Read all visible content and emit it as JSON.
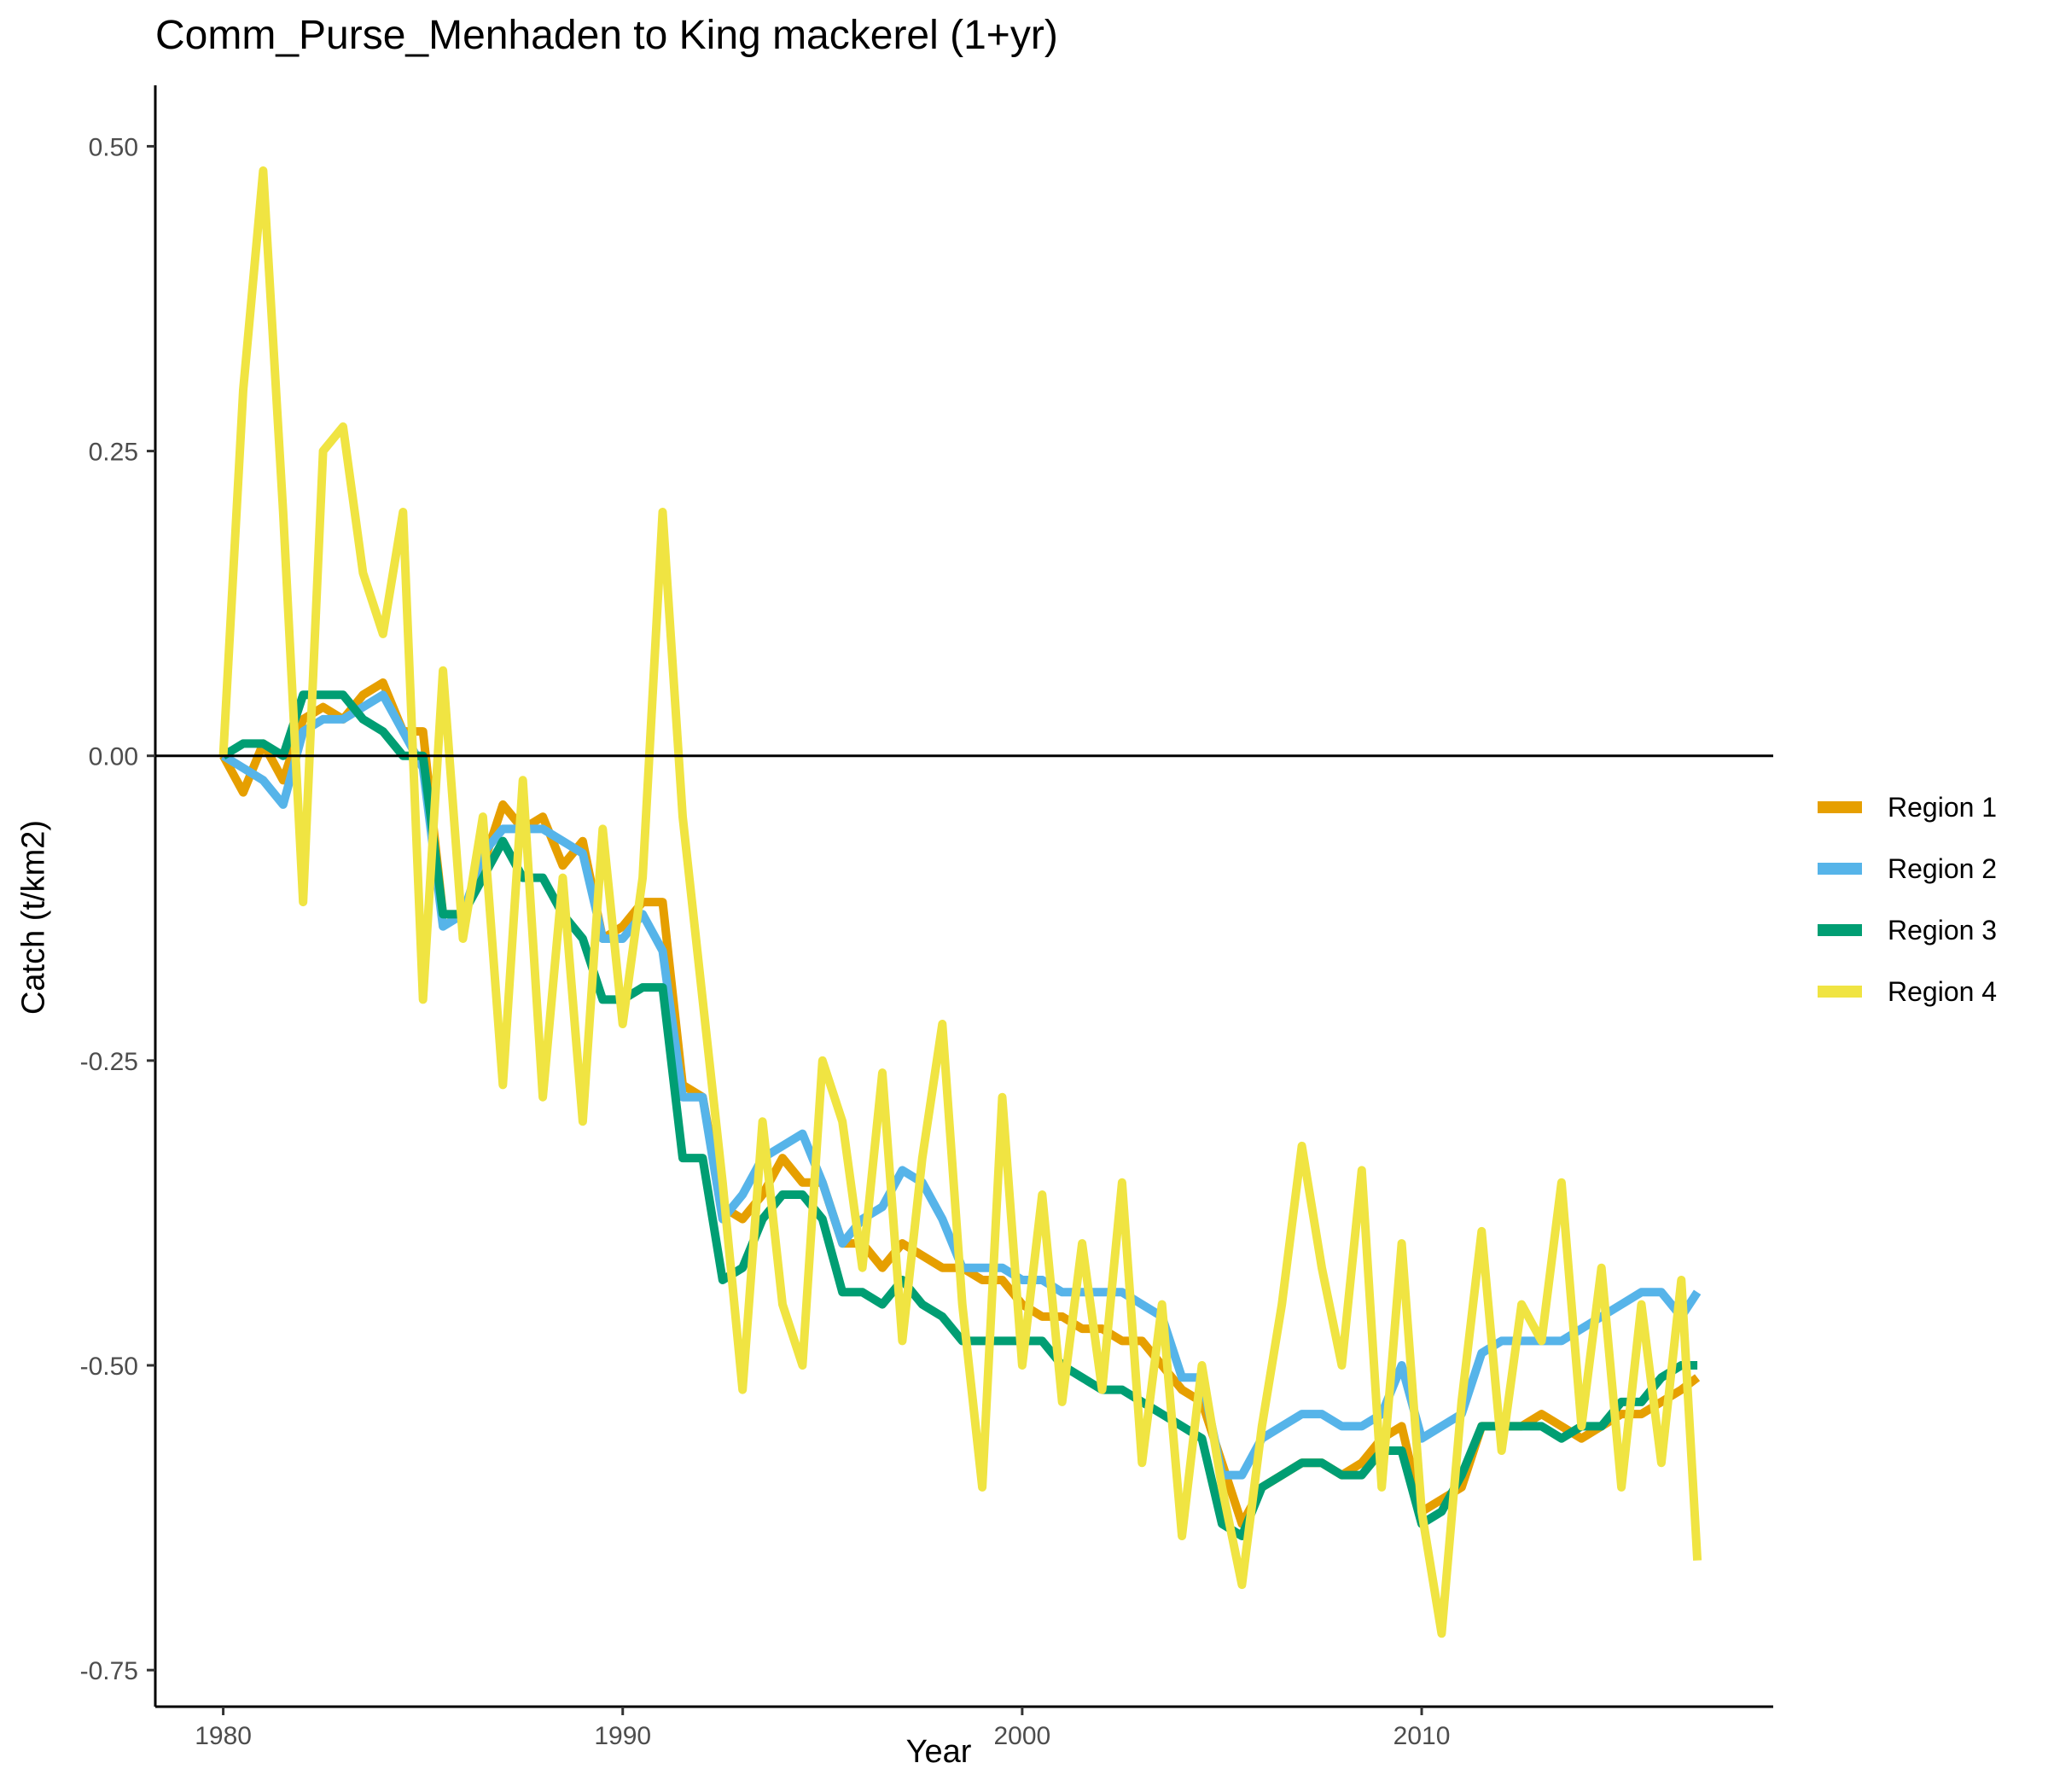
{
  "chart_data": {
    "type": "line",
    "title": "Comm_Purse_Menhaden to King mackerel (1+yr)",
    "xlabel": "Year",
    "ylabel": "Catch (t/km2)",
    "xlim": [
      1978.3,
      2018.8
    ],
    "ylim": [
      -0.78,
      0.55
    ],
    "x_ticks": [
      {
        "value": 1980,
        "label": "1980"
      },
      {
        "value": 1990,
        "label": "1990"
      },
      {
        "value": 2000,
        "label": "2000"
      },
      {
        "value": 2010,
        "label": "2010"
      }
    ],
    "y_ticks": [
      {
        "value": 0.5,
        "label": "0.50"
      },
      {
        "value": 0.25,
        "label": "0.25"
      },
      {
        "value": 0.0,
        "label": "0.00"
      },
      {
        "value": -0.25,
        "label": "-0.25"
      },
      {
        "value": -0.5,
        "label": "-0.50"
      },
      {
        "value": -0.75,
        "label": "-0.75"
      }
    ],
    "reference_line_y": 0,
    "grid": false,
    "legend_position": "right",
    "x": [
      1980.0,
      1980.5,
      1981.0,
      1981.5,
      1982.0,
      1982.5,
      1983.0,
      1983.5,
      1984.0,
      1984.5,
      1985.0,
      1985.5,
      1986.0,
      1986.5,
      1987.0,
      1987.5,
      1988.0,
      1988.5,
      1989.0,
      1989.5,
      1990.0,
      1990.5,
      1991.0,
      1991.5,
      1992.0,
      1992.5,
      1993.0,
      1993.5,
      1994.0,
      1994.5,
      1995.0,
      1995.5,
      1996.0,
      1996.5,
      1997.0,
      1997.5,
      1998.0,
      1998.5,
      1999.0,
      1999.5,
      2000.0,
      2000.5,
      2001.0,
      2001.5,
      2002.0,
      2002.5,
      2003.0,
      2003.5,
      2004.0,
      2004.5,
      2005.0,
      2005.5,
      2006.0,
      2006.5,
      2007.0,
      2007.5,
      2008.0,
      2008.5,
      2009.0,
      2009.5,
      2010.0,
      2010.5,
      2011.0,
      2011.5,
      2012.0,
      2012.5,
      2013.0,
      2013.5,
      2014.0,
      2014.5,
      2015.0,
      2015.5,
      2016.0,
      2016.5,
      2016.9
    ],
    "series": [
      {
        "name": "Region 1",
        "color": "#E69F00",
        "values": [
          0.0,
          -0.03,
          0.01,
          -0.02,
          0.03,
          0.04,
          0.03,
          0.05,
          0.06,
          0.02,
          0.02,
          -0.13,
          -0.13,
          -0.09,
          -0.04,
          -0.06,
          -0.05,
          -0.09,
          -0.07,
          -0.15,
          -0.14,
          -0.12,
          -0.12,
          -0.27,
          -0.28,
          -0.37,
          -0.38,
          -0.36,
          -0.33,
          -0.35,
          -0.35,
          -0.4,
          -0.4,
          -0.42,
          -0.4,
          -0.41,
          -0.42,
          -0.42,
          -0.43,
          -0.43,
          -0.45,
          -0.46,
          -0.46,
          -0.47,
          -0.47,
          -0.48,
          -0.48,
          -0.5,
          -0.52,
          -0.53,
          -0.58,
          -0.63,
          -0.6,
          -0.59,
          -0.58,
          -0.58,
          -0.59,
          -0.58,
          -0.56,
          -0.55,
          -0.62,
          -0.61,
          -0.6,
          -0.55,
          -0.55,
          -0.55,
          -0.54,
          -0.55,
          -0.56,
          -0.55,
          -0.54,
          -0.54,
          -0.53,
          -0.52,
          -0.51
        ]
      },
      {
        "name": "Region 2",
        "color": "#56B4E9",
        "values": [
          0.0,
          -0.01,
          -0.02,
          -0.04,
          0.02,
          0.03,
          0.03,
          0.04,
          0.05,
          0.02,
          -0.01,
          -0.14,
          -0.13,
          -0.08,
          -0.06,
          -0.06,
          -0.06,
          -0.07,
          -0.08,
          -0.15,
          -0.15,
          -0.13,
          -0.16,
          -0.28,
          -0.28,
          -0.38,
          -0.36,
          -0.33,
          -0.32,
          -0.31,
          -0.35,
          -0.4,
          -0.38,
          -0.37,
          -0.34,
          -0.35,
          -0.38,
          -0.42,
          -0.42,
          -0.42,
          -0.43,
          -0.43,
          -0.44,
          -0.44,
          -0.44,
          -0.44,
          -0.45,
          -0.46,
          -0.51,
          -0.51,
          -0.59,
          -0.59,
          -0.56,
          -0.55,
          -0.54,
          -0.54,
          -0.55,
          -0.55,
          -0.54,
          -0.5,
          -0.56,
          -0.55,
          -0.54,
          -0.49,
          -0.48,
          -0.48,
          -0.48,
          -0.48,
          -0.47,
          -0.46,
          -0.45,
          -0.44,
          -0.44,
          -0.46,
          -0.44
        ]
      },
      {
        "name": "Region 3",
        "color": "#009E73",
        "values": [
          0.0,
          0.01,
          0.01,
          0.0,
          0.05,
          0.05,
          0.05,
          0.03,
          0.02,
          0.0,
          0.0,
          -0.13,
          -0.13,
          -0.1,
          -0.07,
          -0.1,
          -0.1,
          -0.13,
          -0.15,
          -0.2,
          -0.2,
          -0.19,
          -0.19,
          -0.33,
          -0.33,
          -0.43,
          -0.42,
          -0.38,
          -0.36,
          -0.36,
          -0.38,
          -0.44,
          -0.44,
          -0.45,
          -0.43,
          -0.45,
          -0.46,
          -0.48,
          -0.48,
          -0.48,
          -0.48,
          -0.48,
          -0.5,
          -0.51,
          -0.52,
          -0.52,
          -0.53,
          -0.54,
          -0.55,
          -0.56,
          -0.63,
          -0.64,
          -0.6,
          -0.59,
          -0.58,
          -0.58,
          -0.59,
          -0.59,
          -0.57,
          -0.57,
          -0.63,
          -0.62,
          -0.59,
          -0.55,
          -0.55,
          -0.55,
          -0.55,
          -0.56,
          -0.55,
          -0.55,
          -0.53,
          -0.53,
          -0.51,
          -0.5,
          -0.5
        ]
      },
      {
        "name": "Region 4",
        "color": "#F0E442",
        "values": [
          0.0,
          0.3,
          0.48,
          0.2,
          -0.12,
          0.25,
          0.27,
          0.15,
          0.1,
          0.2,
          -0.2,
          0.07,
          -0.15,
          -0.05,
          -0.27,
          -0.02,
          -0.28,
          -0.1,
          -0.3,
          -0.06,
          -0.22,
          -0.1,
          0.2,
          -0.05,
          -0.2,
          -0.35,
          -0.52,
          -0.3,
          -0.45,
          -0.5,
          -0.25,
          -0.3,
          -0.42,
          -0.26,
          -0.48,
          -0.33,
          -0.22,
          -0.45,
          -0.6,
          -0.28,
          -0.5,
          -0.36,
          -0.53,
          -0.4,
          -0.52,
          -0.35,
          -0.58,
          -0.45,
          -0.64,
          -0.5,
          -0.6,
          -0.68,
          -0.55,
          -0.45,
          -0.32,
          -0.42,
          -0.5,
          -0.34,
          -0.6,
          -0.4,
          -0.62,
          -0.72,
          -0.53,
          -0.39,
          -0.57,
          -0.45,
          -0.48,
          -0.35,
          -0.55,
          -0.42,
          -0.6,
          -0.45,
          -0.58,
          -0.43,
          -0.66
        ]
      }
    ]
  }
}
